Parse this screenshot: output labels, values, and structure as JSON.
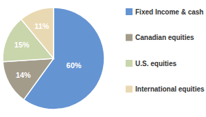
{
  "chart_data": {
    "type": "pie",
    "categories": [
      "Fixed Income & cash",
      "Canadian equities",
      "U.S. equities",
      "International equities"
    ],
    "values": [
      60,
      14,
      15,
      11
    ],
    "value_labels": [
      "60%",
      "14%",
      "15%",
      "11%"
    ],
    "colors": [
      "#6594d3",
      "#a39c8b",
      "#c9d5ab",
      "#e9d9b2"
    ],
    "data_labels": true,
    "legend": "right"
  }
}
